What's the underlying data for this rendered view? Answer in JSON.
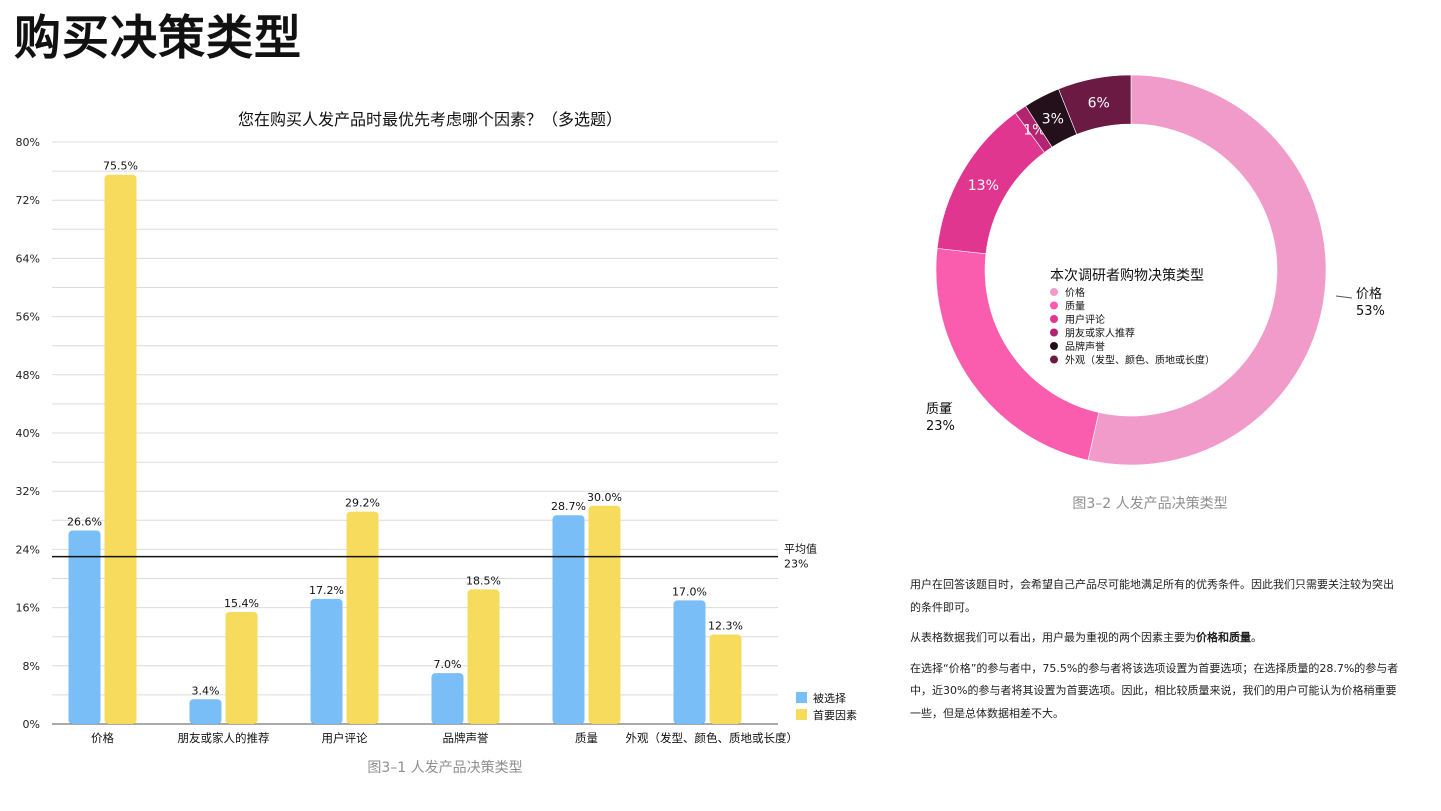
{
  "page_title": "购买决策类型",
  "bar_caption": "图3–1 人发产品决策类型",
  "donut_caption": "图3–2 人发产品决策类型",
  "notes": {
    "p1": "用户在回答该题目时，会希望自己产品尽可能地满足所有的优秀条件。因此我们只需要关注较为突出的条件即可。",
    "p2_prefix": "从表格数据我们可以看出，用户最为重视的两个因素主要为",
    "p2_bold": "价格和质量",
    "p2_suffix": "。",
    "p3": "在选择“价格”的参与者中，75.5%的参与者将该选项设置为首要选项；在选择质量的28.7%的参与者中，近30%的参与者将其设置为首要选项。因此，相比较质量来说，我们的用户可能认为价格稍重要一些，但是总体数据相差不大。"
  },
  "chart_data": [
    {
      "type": "bar",
      "title": "您在购买人发产品时最优先考虑哪个因素？（多选题）",
      "categories": [
        "价格",
        "朋友或家人的推荐",
        "用户评论",
        "品牌声誉",
        "质量",
        "外观（发型、颜色、质地或长度）"
      ],
      "series": [
        {
          "name": "被选择",
          "color": "#79BEF7",
          "values": [
            26.6,
            3.4,
            17.2,
            7.0,
            28.7,
            17.0
          ]
        },
        {
          "name": "首要因素",
          "color": "#F6DB5C",
          "values": [
            75.5,
            15.4,
            29.2,
            18.5,
            30.0,
            12.3
          ]
        }
      ],
      "value_labels": [
        [
          "26.6%",
          "3.4%",
          "17.2%",
          "7.0%",
          "28.7%",
          "17.0%"
        ],
        [
          "75.5%",
          "15.4%",
          "29.2%",
          "18.5%",
          "30.0%",
          "12.3%"
        ]
      ],
      "ylim": [
        0,
        80
      ],
      "yticks": [
        0,
        8,
        16,
        24,
        32,
        40,
        48,
        56,
        64,
        72,
        80
      ],
      "ytick_labels": [
        "0%",
        "8%",
        "16%",
        "24%",
        "32%",
        "40%",
        "48%",
        "56%",
        "64%",
        "72%",
        "80%"
      ],
      "grid": true,
      "legend_position": "bottom-right",
      "reference_line": {
        "value": 23,
        "label_line1": "平均值",
        "label_line2": "23%"
      }
    },
    {
      "type": "pie",
      "title": "本次调研者购物决策类型",
      "slices": [
        {
          "label": "价格",
          "value": 53,
          "color": "#F19BCA",
          "pct": "53%"
        },
        {
          "label": "质量",
          "value": 23,
          "color": "#FB5DAE",
          "pct": "23%"
        },
        {
          "label": "用户评论",
          "value": 13,
          "color": "#E03690",
          "pct": "13%"
        },
        {
          "label": "朋友或家人推荐",
          "value": 1,
          "color": "#B2246F",
          "pct": "1%"
        },
        {
          "label": "品牌声誉",
          "value": 3,
          "color": "#24101A",
          "pct": "3%"
        },
        {
          "label": "外观（发型、颜色、质地或长度）",
          "value": 6,
          "color": "#6B1A44",
          "pct": "6%"
        }
      ],
      "outside_labels": [
        {
          "name": "价格",
          "pct": "53%"
        },
        {
          "name": "质量",
          "pct": "23%"
        }
      ],
      "legend_position": "center"
    }
  ]
}
